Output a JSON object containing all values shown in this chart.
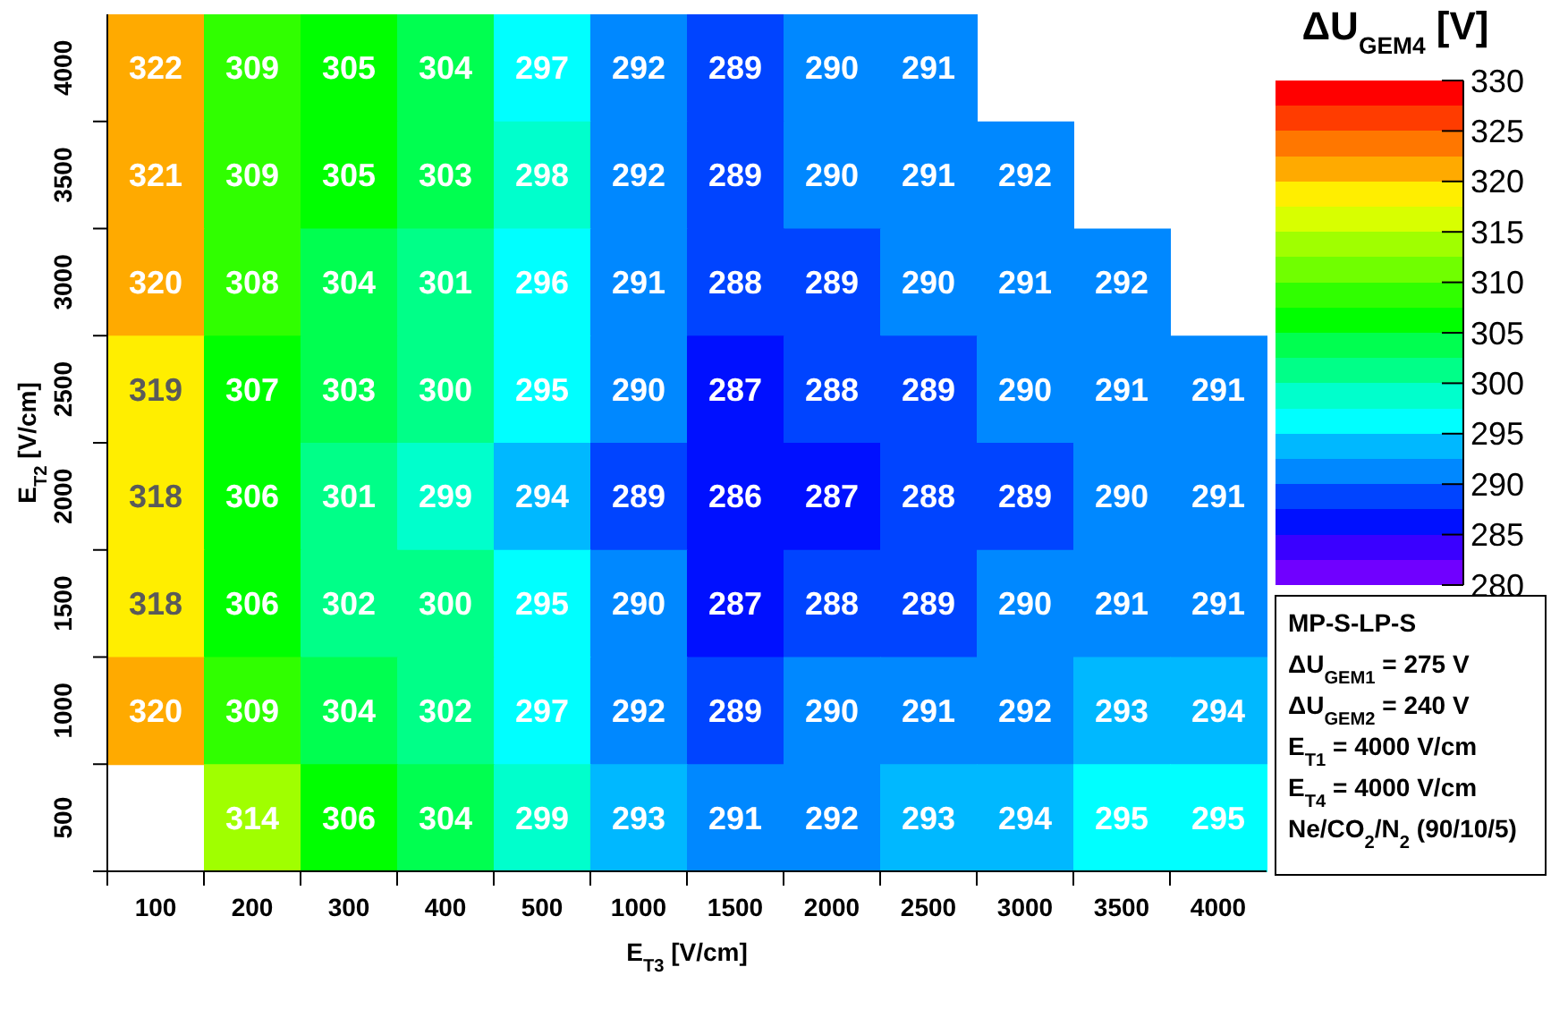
{
  "chart_data": {
    "type": "heatmap",
    "xlabel": "E$_{T3}$ [V/cm]",
    "ylabel": "E$_{T2}$ [V/cm]",
    "clabel": "ΔU$_{GEM4}$ [V]",
    "categories": [
      "100",
      "200",
      "300",
      "400",
      "500",
      "1000",
      "1500",
      "2000",
      "2500",
      "3000",
      "3500",
      "4000"
    ],
    "y_categories": [
      "4000",
      "3500",
      "3000",
      "2500",
      "2000",
      "1500",
      "1000",
      "500"
    ],
    "cells": [
      [
        322,
        309,
        305,
        304,
        297,
        292,
        289,
        290,
        291,
        null,
        null,
        null
      ],
      [
        321,
        309,
        305,
        303,
        298,
        292,
        289,
        290,
        291,
        292,
        null,
        null
      ],
      [
        320,
        308,
        304,
        301,
        296,
        291,
        288,
        289,
        290,
        291,
        292,
        null
      ],
      [
        319,
        307,
        303,
        300,
        295,
        290,
        287,
        288,
        289,
        290,
        291,
        291
      ],
      [
        318,
        306,
        301,
        299,
        294,
        289,
        286,
        287,
        288,
        289,
        290,
        291
      ],
      [
        318,
        306,
        302,
        300,
        295,
        290,
        287,
        288,
        289,
        290,
        291,
        291
      ],
      [
        320,
        309,
        304,
        302,
        297,
        292,
        289,
        290,
        291,
        292,
        293,
        294
      ],
      [
        null,
        314,
        306,
        304,
        299,
        293,
        291,
        292,
        293,
        294,
        295,
        295
      ]
    ],
    "data_labels": true,
    "clim": [
      280,
      330
    ],
    "cticks": [
      280,
      285,
      290,
      295,
      300,
      305,
      310,
      315,
      320,
      325,
      330
    ],
    "annotations": [
      "MP-S-LP-S",
      "ΔU$_{GEM1}$ = 275 V",
      "ΔU$_{GEM2}$ = 240 V",
      "E$_{T1}$ = 4000 V/cm",
      "E$_{T4}$ = 4000 V/cm",
      "Ne/CO$_{2}$/N$_{2}$ (90/10/5)"
    ]
  }
}
